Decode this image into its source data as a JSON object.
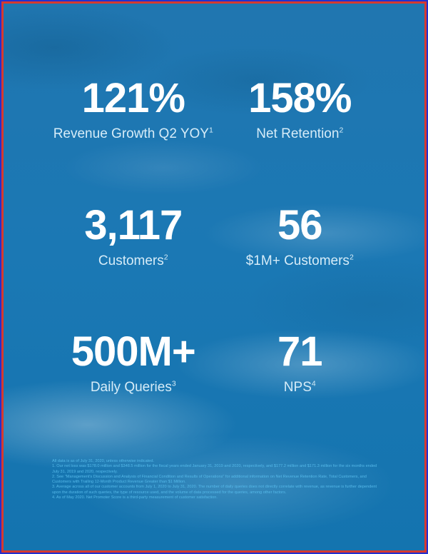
{
  "stats": [
    {
      "value": "121%",
      "label": "Revenue Growth Q2 YOY",
      "sup": "1"
    },
    {
      "value": "158%",
      "label": "Net Retention",
      "sup": "2"
    },
    {
      "value": "3,117",
      "label": "Customers",
      "sup": "2"
    },
    {
      "value": "56",
      "label": "$1M+ Customers",
      "sup": "2"
    },
    {
      "value": "500M+",
      "label": "Daily Queries",
      "sup": "3"
    },
    {
      "value": "71",
      "label": "NPS",
      "sup": "4"
    }
  ],
  "footnotes": [
    "All data is as of July 31, 2020, unless otherwise indicated.",
    "1. Our net loss was $178.0 million and $348.5 million for the fiscal years ended January 31, 2019 and 2020, respectively, and $177.2 million and $171.3 million for the six months ended July 31, 2019 and 2020, respectively.",
    "2. See \"Management's Discussion and Analysis of Financial Condition and Results of Operations\" for additional information on Net Revenue Retention Rate, Total Customers, and Customers with Trailing 12-Month Product Revenue Greater than $1 Million.",
    "3. Average across all of our customer accounts from July 1, 2020 to July 31, 2020. The number of daily queries does not directly correlate with revenue, as revenue is further dependent upon the duration of such queries, the type of resource used, and the volume of data processed for the queries, among other factors.",
    "4. As of May 2020. Net Promoter Score is a third-party measurement of customer satisfaction."
  ],
  "colors": {
    "sky_blue": "#1b78b4",
    "value_text": "#ffffff",
    "label_text": "#d6ecf8",
    "footnote_text": "#55b9e9",
    "border_red": "#d63a2f",
    "border_blue": "#2230cf"
  }
}
